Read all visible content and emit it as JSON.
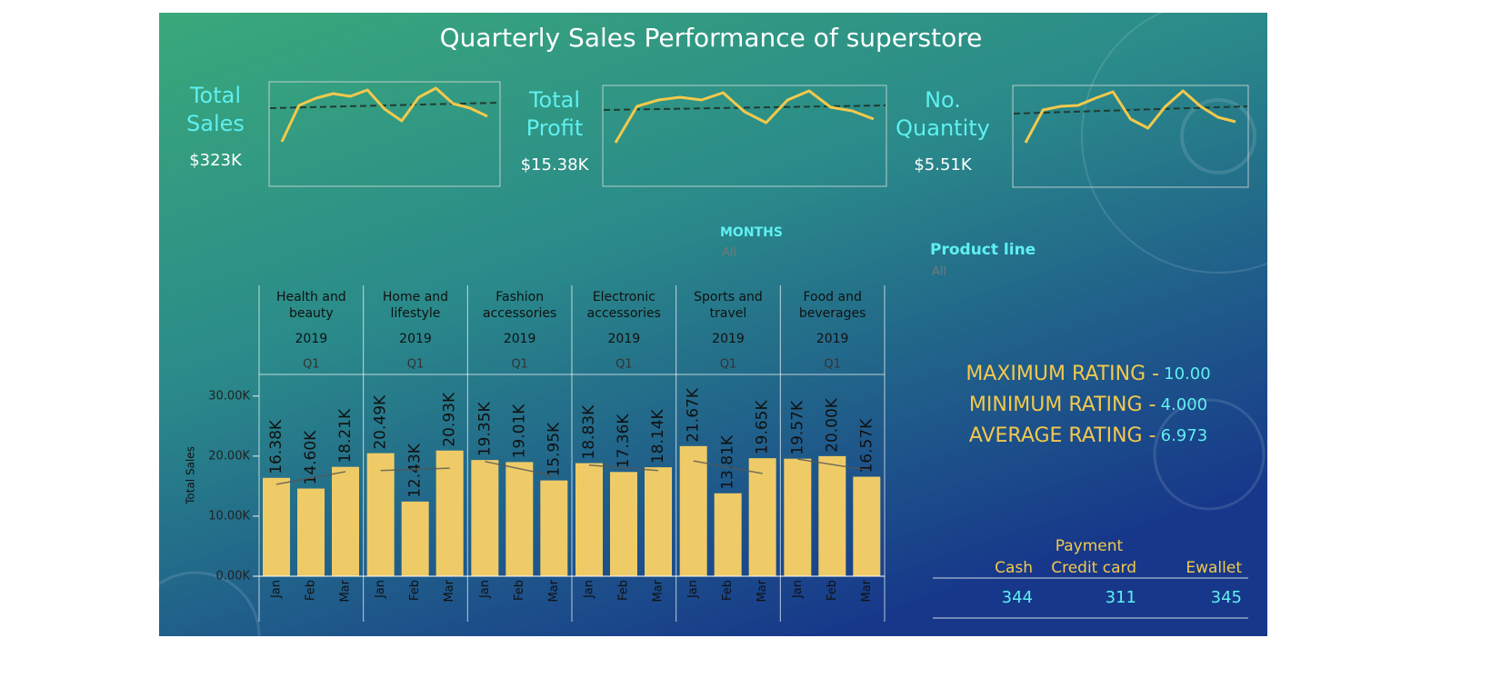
{
  "title": "Quarterly Sales Performance of superstore",
  "kpis": [
    {
      "title": "Total Sales",
      "value": "$323K"
    },
    {
      "title": "Total Profit",
      "value": "$15.38K"
    },
    {
      "title": "No. Quantity",
      "value": "$5.51K"
    }
  ],
  "filters": [
    {
      "title": "MONTHS",
      "value": "All"
    },
    {
      "title": "Product line",
      "value": "All"
    }
  ],
  "ratings": [
    {
      "label": "MAXIMUM RATING -",
      "value": "10.00"
    },
    {
      "label": "MINIMUM RATING -",
      "value": "4.000"
    },
    {
      "label": "AVERAGE RATING -",
      "value": "6.973"
    }
  ],
  "payment": {
    "title": "Payment",
    "columns": [
      "Cash",
      "Credit card",
      "Ewallet"
    ],
    "values": [
      344,
      311,
      345
    ]
  },
  "chart_data": [
    {
      "type": "line",
      "values": [
        49,
        89,
        97,
        102,
        99,
        106,
        85,
        72,
        98,
        108,
        91,
        86,
        77
      ],
      "trend": [
        86,
        92
      ],
      "ylim": [
        0,
        115
      ],
      "color": "#f2c94c"
    },
    {
      "type": "line",
      "values": [
        48,
        88,
        95,
        98,
        95,
        103,
        82,
        70,
        95,
        105,
        87,
        83,
        74
      ],
      "trend": [
        84,
        89
      ],
      "ylim": [
        0,
        111
      ],
      "color": "#f2c94c"
    },
    {
      "type": "line",
      "values": [
        49,
        85,
        89,
        90,
        98,
        105,
        75,
        65,
        89,
        106,
        89,
        77,
        72
      ],
      "trend": [
        81,
        89
      ],
      "ylim": [
        0,
        112
      ],
      "color": "#f2c94c"
    },
    {
      "type": "bar",
      "y_label": "Total Sales",
      "color": "#efcb68",
      "ylim": [
        0,
        33600
      ],
      "yticks": [
        {
          "value": 0,
          "label": "0.00K"
        },
        {
          "value": 10000,
          "label": "10.00K"
        },
        {
          "value": 20000,
          "label": "20.00K"
        },
        {
          "value": 30000,
          "label": "30.00K"
        }
      ],
      "panels": [
        {
          "name": "Health and beauty",
          "year": "2019",
          "quarter": "Q1",
          "categories": [
            "Jan",
            "Feb",
            "Mar"
          ],
          "values": [
            16380,
            14600,
            18210
          ],
          "value_labels": [
            "16.38K",
            "14.60K",
            "18.21K"
          ],
          "trend": [
            15300,
            17400
          ]
        },
        {
          "name": "Home and lifestyle",
          "year": "2019",
          "quarter": "Q1",
          "categories": [
            "Jan",
            "Feb",
            "Mar"
          ],
          "values": [
            20490,
            12430,
            20930
          ],
          "value_labels": [
            "20.49K",
            "12.43K",
            "20.93K"
          ],
          "trend": [
            17600,
            18000
          ]
        },
        {
          "name": "Fashion accessories",
          "year": "2019",
          "quarter": "Q1",
          "categories": [
            "Jan",
            "Feb",
            "Mar"
          ],
          "values": [
            19350,
            19010,
            15950
          ],
          "value_labels": [
            "19.35K",
            "19.01K",
            "15.95K"
          ],
          "trend": [
            19100,
            16700
          ]
        },
        {
          "name": "Electronic accessories",
          "year": "2019",
          "quarter": "Q1",
          "categories": [
            "Jan",
            "Feb",
            "Mar"
          ],
          "values": [
            18830,
            17360,
            18140
          ],
          "value_labels": [
            "18.83K",
            "17.36K",
            "18.14K"
          ],
          "trend": [
            18500,
            17600
          ]
        },
        {
          "name": "Sports and travel",
          "year": "2019",
          "quarter": "Q1",
          "categories": [
            "Jan",
            "Feb",
            "Mar"
          ],
          "values": [
            21670,
            13810,
            19650
          ],
          "value_labels": [
            "21.67K",
            "13.81K",
            "19.65K"
          ],
          "trend": [
            19200,
            17100
          ]
        },
        {
          "name": "Food and beverages",
          "year": "2019",
          "quarter": "Q1",
          "categories": [
            "Jan",
            "Feb",
            "Mar"
          ],
          "values": [
            19570,
            20000,
            16570
          ],
          "value_labels": [
            "19.57K",
            "20.00K",
            "16.57K"
          ],
          "trend": [
            19500,
            17700
          ]
        }
      ]
    }
  ]
}
